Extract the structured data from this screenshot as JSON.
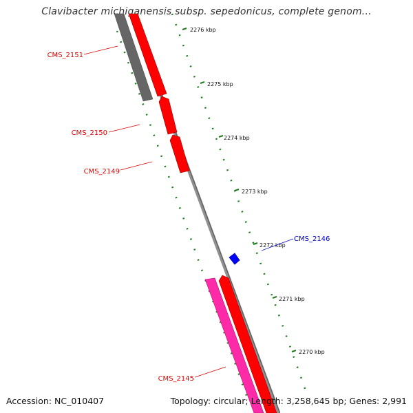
{
  "title": "Clavibacter michiganensis subsp. sepedonicus, complete genom...",
  "footer": {
    "accession": "Accession: NC_010407",
    "summary": "Topology: circular; Length: 3,258,645 bp; Genes: 2,991"
  },
  "scale": {
    "ticks": [
      {
        "label": "2276 kbp"
      },
      {
        "label": "2275 kbp"
      },
      {
        "label": "2274 kbp"
      },
      {
        "label": "2273 kbp"
      },
      {
        "label": "2272 kbp"
      },
      {
        "label": "2271 kbp"
      },
      {
        "label": "2270 kbp"
      }
    ],
    "color": "#1f7a1f"
  },
  "genes": [
    {
      "id": "CMS_2151",
      "color": "#dd0000"
    },
    {
      "id": "CMS_2150",
      "color": "#dd0000"
    },
    {
      "id": "CMS_2149",
      "color": "#dd0000"
    },
    {
      "id": "CMS_2146",
      "color": "#0000cc"
    },
    {
      "id": "CMS_2145",
      "color": "#dd0000"
    }
  ],
  "colors": {
    "backbone": "#888888",
    "gene_red": "#ff0000",
    "gene_pink": "#ff2aa8",
    "gene_gray": "#666666",
    "gene_blue": "#0000ff"
  }
}
